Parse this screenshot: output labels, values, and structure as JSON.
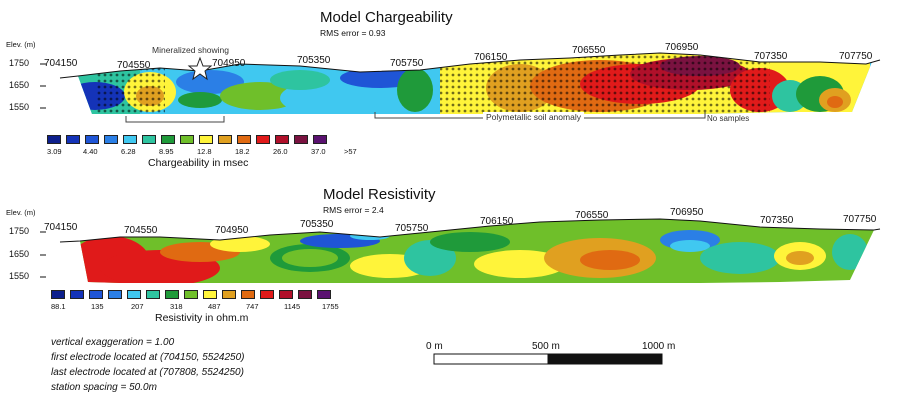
{
  "chargeability": {
    "title": "Model Chargeability",
    "rms": "RMS error = 0.93",
    "elev_label": "Elev. (m)",
    "elev_ticks": [
      "1750",
      "1650",
      "1550"
    ],
    "coords": [
      "704150",
      "704550",
      "704950",
      "705350",
      "705750",
      "706150",
      "706550",
      "706950",
      "707350",
      "707750"
    ],
    "showing_label": "Mineralized showing",
    "anomaly_label": "Polymetallic soil anomaly",
    "nosample_label": "No samples",
    "legend_title": "Chargeability in msec",
    "legend_values": [
      "3.09",
      "4.40",
      "6.28",
      "8.95",
      "12.8",
      "18.2",
      "26.0",
      "37.0",
      ">57"
    ],
    "legend_colors": [
      "#0d1f8c",
      "#1433b8",
      "#1f55d6",
      "#2b7fe6",
      "#40c8f0",
      "#2ec4a0",
      "#1f9a3a",
      "#6fbf2a",
      "#fff43a",
      "#e0a020",
      "#e06a12",
      "#e01a1a",
      "#b0102a",
      "#7a1240",
      "#5a1270"
    ]
  },
  "resistivity": {
    "title": "Model Resistivity",
    "rms": "RMS error = 2.4",
    "elev_label": "Elev. (m)",
    "elev_ticks": [
      "1750",
      "1650",
      "1550"
    ],
    "coords": [
      "704150",
      "704550",
      "704950",
      "705350",
      "705750",
      "706150",
      "706550",
      "706950",
      "707350",
      "707750"
    ],
    "legend_title": "Resistivity in ohm.m",
    "legend_values": [
      "88.1",
      "135",
      "207",
      "318",
      "487",
      "747",
      "1145",
      "1755"
    ],
    "legend_colors": [
      "#0d1f8c",
      "#1433b8",
      "#1f55d6",
      "#2b7fe6",
      "#40c8f0",
      "#2ec4a0",
      "#1f9a3a",
      "#6fbf2a",
      "#fff43a",
      "#e0a020",
      "#e06a12",
      "#e01a1a",
      "#b0102a",
      "#7a1240",
      "#5a1270"
    ]
  },
  "notes": [
    "vertical exaggeration = 1.00",
    "first electrode located at (704150, 5524250)",
    "last electrode located at (707808, 5524250)",
    "station spacing = 50.0m"
  ],
  "scale_bar": {
    "labels": [
      "0 m",
      "500 m",
      "1000 m"
    ]
  }
}
